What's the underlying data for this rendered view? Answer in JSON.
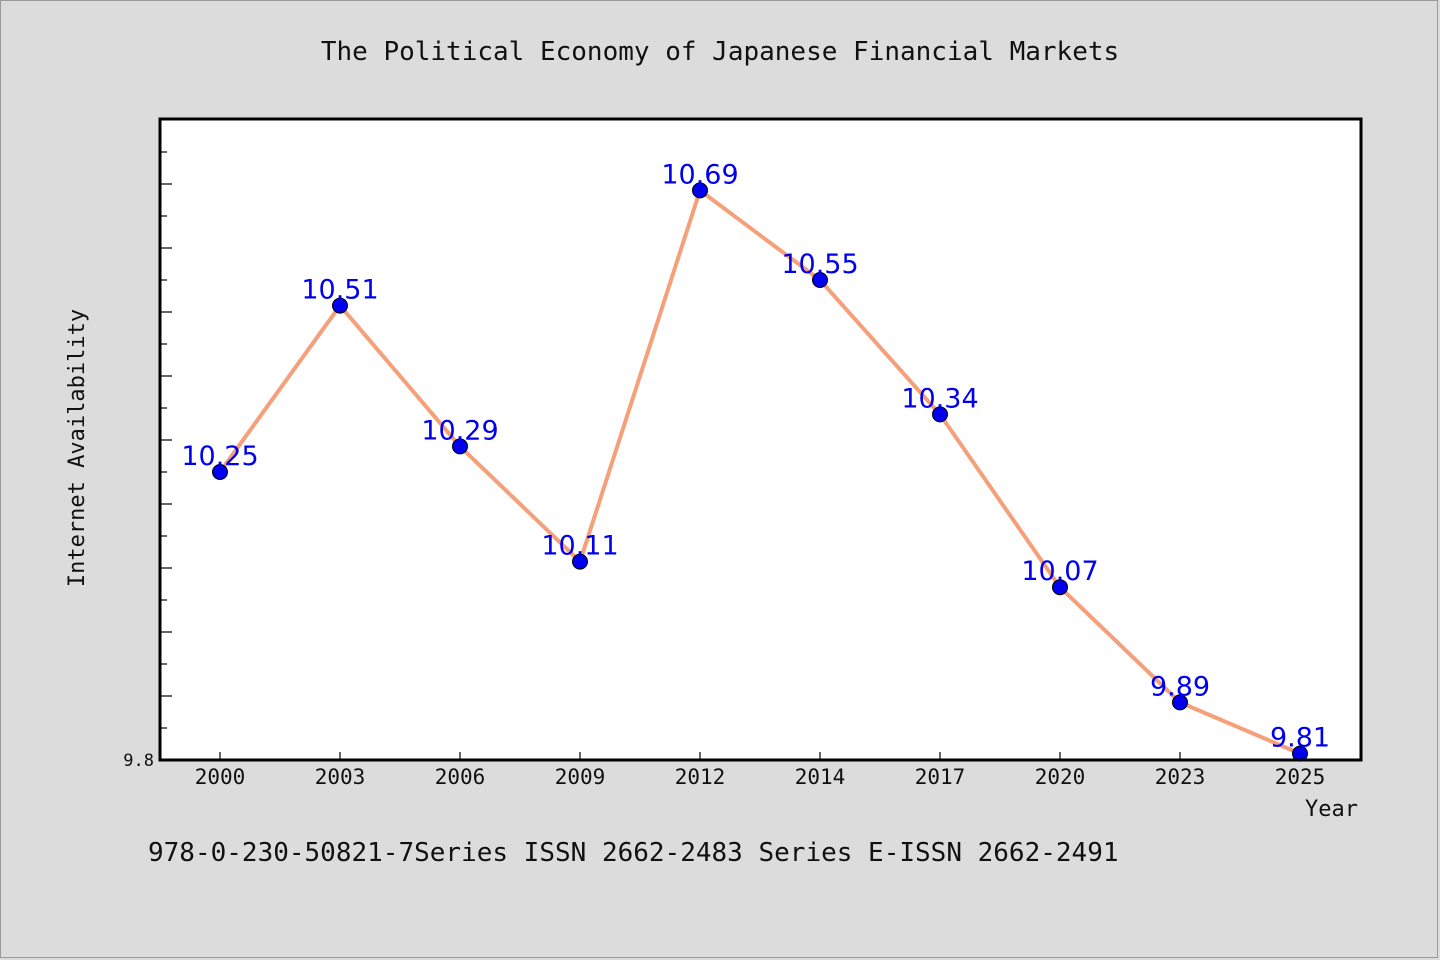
{
  "chart_data": {
    "type": "line",
    "title": "The Political Economy of Japanese Financial Markets",
    "xlabel": "Year",
    "ylabel": "Internet Availability",
    "categories": [
      "2000",
      "2003",
      "2006",
      "2009",
      "2012",
      "2014",
      "2017",
      "2020",
      "2023",
      "2025"
    ],
    "series": [
      {
        "values": [
          10.25,
          10.51,
          10.29,
          10.11,
          10.69,
          10.55,
          10.34,
          10.07,
          9.89,
          9.81
        ],
        "data_labels": [
          "10.25",
          "10.51",
          "10.29",
          "10.11",
          "10.69",
          "10.55",
          "10.34",
          "10.07",
          "9.89",
          "9.81"
        ],
        "line_color": "#f5a07a",
        "marker_color": "#0000ee"
      }
    ],
    "y_tick_labels": [
      {
        "value": 9.8,
        "label": "9.8"
      }
    ],
    "ylim": [
      9.8,
      10.8
    ],
    "y_minor_step": 0.05,
    "grid": false,
    "legend": "none"
  },
  "footer": "978-0-230-50821-7Series ISSN 2662-2483 Series E-ISSN 2662-2491",
  "colors": {
    "background": "#dcdcdc",
    "plot_background": "#ffffff",
    "data_label": "#0000ee"
  }
}
